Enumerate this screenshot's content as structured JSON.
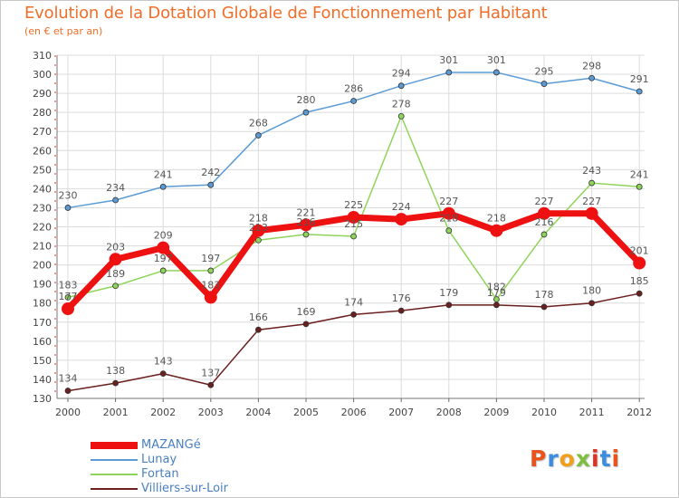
{
  "header": {
    "title": "Evolution de la Dotation Globale de Fonctionnement par Habitant",
    "subtitle": "(en € et par an)"
  },
  "chart_data": {
    "type": "line",
    "title": "Evolution de la Dotation Globale de Fonctionnement par Habitant",
    "subtitle": "(en € et par an)",
    "xlabel": "",
    "ylabel": "",
    "ylim": [
      130,
      310
    ],
    "y_ticks": [
      130,
      140,
      150,
      160,
      170,
      180,
      190,
      200,
      210,
      220,
      230,
      240,
      250,
      260,
      270,
      280,
      290,
      300,
      310
    ],
    "grid": true,
    "legend_position": "bottom-left",
    "x": [
      "2000",
      "2001",
      "2002",
      "2003",
      "2004",
      "2005",
      "2006",
      "2007",
      "2008",
      "2009",
      "2010",
      "2011",
      "2012"
    ],
    "series": [
      {
        "name": "Villiers-sur-Loir",
        "color": "#6b1f1f",
        "values": [
          134,
          138,
          143,
          137,
          166,
          169,
          174,
          176,
          179,
          179,
          178,
          180,
          185
        ]
      },
      {
        "name": "Fortan",
        "color": "#8fd45a",
        "values": [
          183,
          189,
          197,
          197,
          213,
          216,
          215,
          278,
          218,
          182,
          216,
          243,
          241
        ]
      },
      {
        "name": "Lunay",
        "color": "#5b9bd5",
        "values": [
          230,
          234,
          241,
          242,
          268,
          280,
          286,
          294,
          301,
          301,
          295,
          298,
          291
        ]
      },
      {
        "name": "MAZANGé",
        "color": "#ee1111",
        "values": [
          177,
          203,
          209,
          183,
          218,
          221,
          225,
          224,
          227,
          218,
          227,
          227,
          201
        ]
      }
    ],
    "data_labels": {
      "Villiers-sur-Loir": [
        "134",
        "138",
        "143",
        "137",
        "166",
        "169",
        "174",
        "176",
        "179",
        "179",
        "178",
        "180",
        "185"
      ],
      "Fortan": [
        "183",
        "189",
        "197",
        "197",
        "213",
        "216",
        "215",
        "278",
        "218",
        "182",
        "216",
        "243",
        "241"
      ],
      "Lunay": [
        "230",
        "234",
        "241",
        "242",
        "268",
        "280",
        "286",
        "294",
        "301",
        "301",
        "295",
        "298",
        "291"
      ],
      "MAZANGé": [
        "177",
        "203",
        "209",
        "183",
        "218",
        "221",
        "225",
        "224",
        "227",
        "218",
        "227",
        "227",
        "201"
      ]
    }
  },
  "legend": {
    "items": [
      {
        "label": "MAZANGé",
        "color": "#ee1111"
      },
      {
        "label": "Lunay",
        "color": "#5b9bd5"
      },
      {
        "label": "Fortan",
        "color": "#8fd45a"
      },
      {
        "label": "Villiers-sur-Loir",
        "color": "#6b1f1f"
      }
    ]
  },
  "logo": {
    "text": "Proxiti",
    "colors": [
      "#e8541e",
      "#3a8de0",
      "#f2a01a",
      "#7fbf3f",
      "#e0301e",
      "#3a8de0",
      "#e8541e"
    ]
  }
}
